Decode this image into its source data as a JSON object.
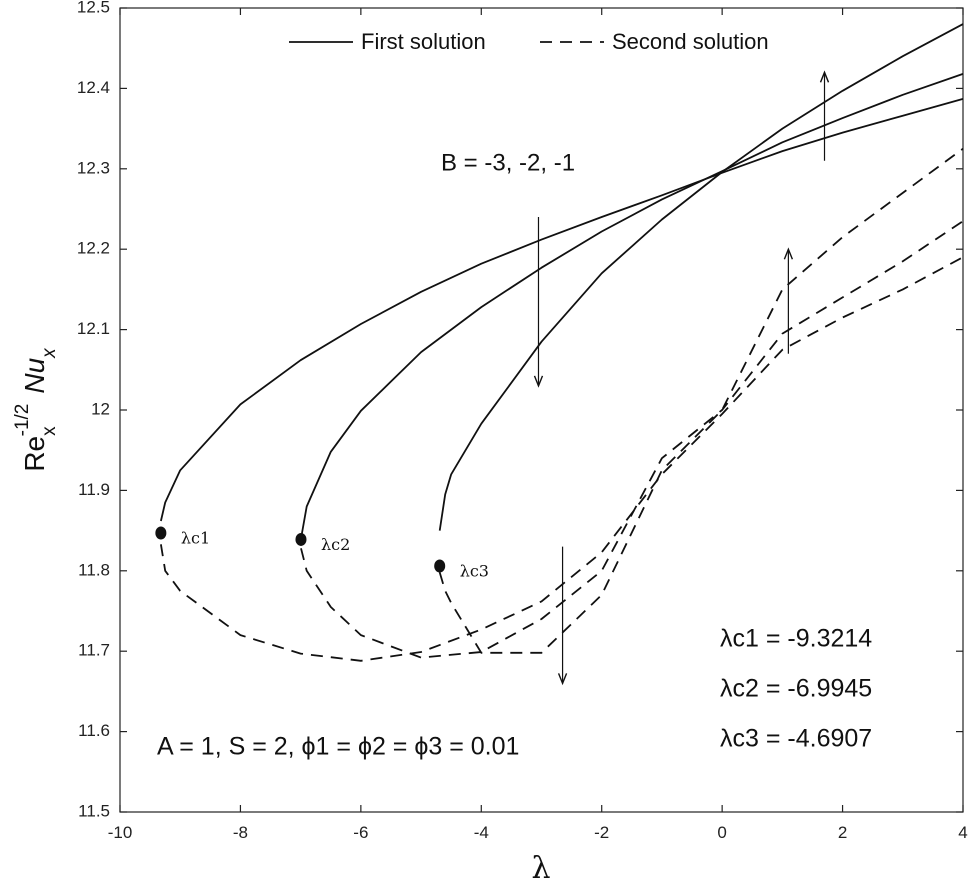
{
  "chart_data": {
    "type": "line",
    "xlabel": "λ",
    "ylabel": {
      "base": "Re",
      "sub": "x",
      "sup": "-1/2",
      "nu": "Nu",
      "nu_sub": "x"
    },
    "xlim": [
      -10,
      4
    ],
    "ylim": [
      11.5,
      12.5
    ],
    "xticks": [
      -10,
      -8,
      -6,
      -4,
      -2,
      0,
      2,
      4
    ],
    "xtick_labels": [
      "-10",
      "-8",
      "-6",
      "-4",
      "-2",
      "0",
      "2",
      "4"
    ],
    "yticks": [
      11.5,
      11.6,
      11.7,
      11.8,
      11.9,
      12,
      12.1,
      12.2,
      12.3,
      12.4,
      12.5
    ],
    "ytick_labels": [
      "11.5",
      "11.6",
      "11.7",
      "11.8",
      "11.9",
      "12",
      "12.1",
      "12.2",
      "12.3",
      "12.4",
      "12.5"
    ],
    "grid": false,
    "legend_position": "top-center",
    "legend": [
      {
        "label": "First solution",
        "style": "solid"
      },
      {
        "label": "Second solution",
        "style": "dashed"
      }
    ],
    "series": [
      {
        "style": "solid",
        "x": [
          -9.3214,
          -9.25,
          -9,
          -8,
          -7,
          -6,
          -5,
          -4,
          -3,
          -2,
          -1,
          0,
          1,
          2,
          3,
          4
        ],
        "y": [
          11.862,
          11.885,
          11.925,
          12.007,
          12.062,
          12.107,
          12.147,
          12.182,
          12.212,
          12.24,
          12.267,
          12.295,
          12.322,
          12.345,
          12.366,
          12.387
        ]
      },
      {
        "style": "solid",
        "x": [
          -6.9945,
          -6.9,
          -6.5,
          -6,
          -5,
          -4,
          -3,
          -2,
          -1,
          0,
          1,
          2,
          3,
          4
        ],
        "y": [
          11.84,
          11.88,
          11.948,
          11.999,
          12.072,
          12.128,
          12.177,
          12.222,
          12.262,
          12.297,
          12.333,
          12.363,
          12.392,
          12.418
        ]
      },
      {
        "style": "solid",
        "x": [
          -4.6907,
          -4.6,
          -4.5,
          -4,
          -3,
          -2,
          -1,
          0,
          1,
          2,
          3,
          4
        ],
        "y": [
          11.85,
          11.895,
          11.92,
          11.983,
          12.085,
          12.17,
          12.237,
          12.296,
          12.35,
          12.397,
          12.44,
          12.48
        ]
      },
      {
        "style": "dashed",
        "x": [
          -9.3214,
          -9.25,
          -9,
          -8,
          -7,
          -6,
          -5,
          -4,
          -3,
          -2,
          -1,
          0,
          1,
          2,
          3,
          4
        ],
        "y": [
          11.833,
          11.8,
          11.775,
          11.72,
          11.697,
          11.688,
          11.699,
          11.727,
          11.762,
          11.823,
          11.92,
          11.995,
          12.075,
          12.115,
          12.15,
          12.19
        ]
      },
      {
        "style": "dashed",
        "x": [
          -6.9945,
          -6.9,
          -6.5,
          -6,
          -5,
          -4,
          -3,
          -2,
          -1,
          0,
          1,
          2,
          3,
          4
        ],
        "y": [
          11.828,
          11.8,
          11.755,
          11.72,
          11.692,
          11.699,
          11.74,
          11.8,
          11.94,
          12.0,
          12.095,
          12.14,
          12.185,
          12.235
        ]
      },
      {
        "style": "dashed",
        "x": [
          -4.6907,
          -4.6,
          -4.5,
          -4,
          -3,
          -2,
          -1,
          0,
          1,
          2,
          3,
          4
        ],
        "y": [
          11.798,
          11.775,
          11.76,
          11.698,
          11.698,
          11.77,
          11.925,
          12.0,
          12.15,
          12.215,
          12.27,
          12.325
        ]
      }
    ],
    "critical_points": [
      {
        "label": "λc1",
        "x": -9.3214,
        "y": 11.847
      },
      {
        "label": "λc2",
        "x": -6.9945,
        "y": 11.839
      },
      {
        "label": "λc3",
        "x": -4.6907,
        "y": 11.806
      }
    ],
    "arrows": [
      {
        "x": -3.05,
        "y_from": 12.24,
        "y_to": 12.03
      },
      {
        "x": 1.7,
        "y_from": 12.31,
        "y_to": 12.42
      },
      {
        "x": 1.1,
        "y_from": 12.07,
        "y_to": 12.2
      },
      {
        "x": -2.65,
        "y_from": 11.83,
        "y_to": 11.66
      }
    ],
    "annotations": {
      "B": "B = -3, -2, -1",
      "params": "A = 1,  S = 2,  ϕ1 = ϕ2 = ϕ3 = 0.01",
      "lc1": "λc1 = -9.3214",
      "lc2": "λc2 = -6.9945",
      "lc3": "λc3 = -4.6907"
    }
  }
}
